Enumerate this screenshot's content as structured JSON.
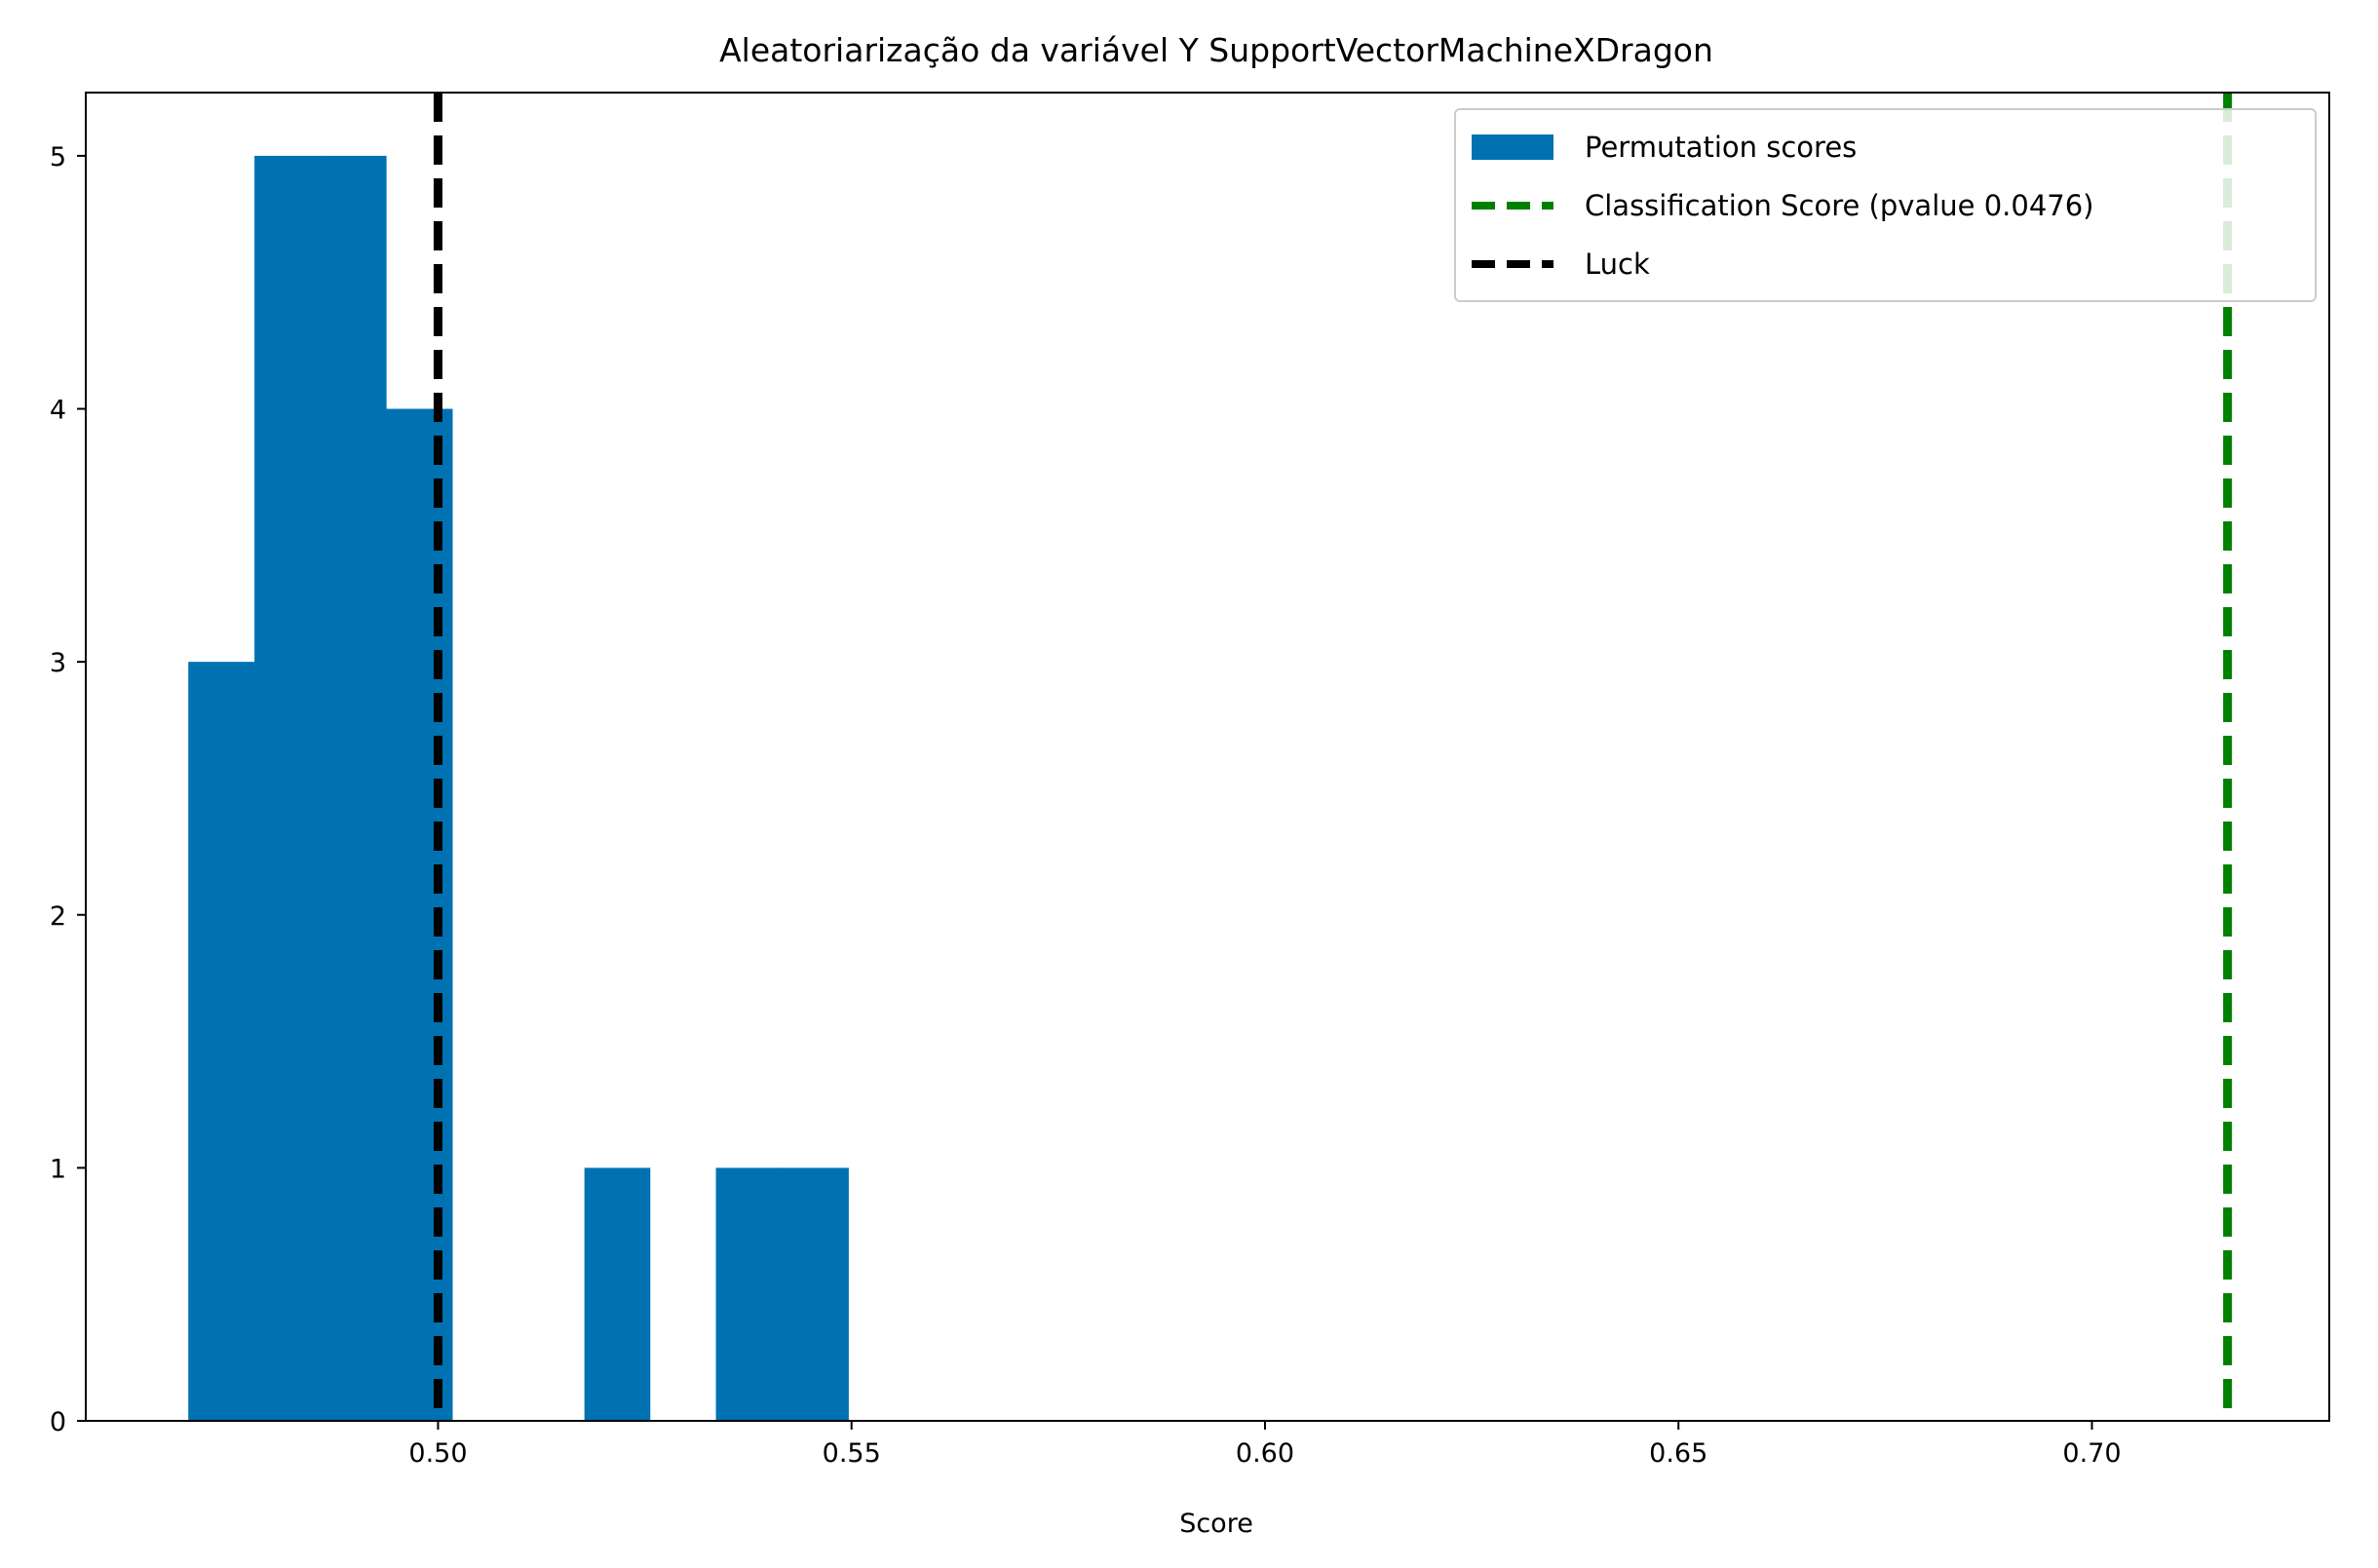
{
  "chart_data": {
    "type": "bar",
    "title": "Aleatoriarização da variável Y SupportVectorMachineXDragon",
    "xlabel": "Score",
    "ylabel": "",
    "xlim": [
      0.4574,
      0.7287
    ],
    "ylim": [
      0,
      5.25
    ],
    "grid": false,
    "legend_position": "top-right",
    "xticks": [
      {
        "value": 0.5,
        "label": "0.50"
      },
      {
        "value": 0.55,
        "label": "0.55"
      },
      {
        "value": 0.6,
        "label": "0.60"
      },
      {
        "value": 0.65,
        "label": "0.65"
      },
      {
        "value": 0.7,
        "label": "0.70"
      }
    ],
    "yticks": [
      {
        "value": 0,
        "label": "0"
      },
      {
        "value": 1,
        "label": "1"
      },
      {
        "value": 2,
        "label": "2"
      },
      {
        "value": 3,
        "label": "3"
      },
      {
        "value": 4,
        "label": "4"
      },
      {
        "value": 5,
        "label": "5"
      }
    ],
    "histogram": {
      "name": "Permutation scores",
      "color": "#0072b2",
      "bins": [
        {
          "start": 0.4698,
          "end": 0.4778,
          "count": 3
        },
        {
          "start": 0.4778,
          "end": 0.4858,
          "count": 5
        },
        {
          "start": 0.4858,
          "end": 0.4937,
          "count": 5
        },
        {
          "start": 0.4937,
          "end": 0.5017,
          "count": 4
        },
        {
          "start": 0.5017,
          "end": 0.5097,
          "count": 0
        },
        {
          "start": 0.5097,
          "end": 0.5177,
          "count": 0
        },
        {
          "start": 0.5177,
          "end": 0.5256,
          "count": 1
        },
        {
          "start": 0.5256,
          "end": 0.5336,
          "count": 0
        },
        {
          "start": 0.5336,
          "end": 0.5416,
          "count": 1
        },
        {
          "start": 0.5416,
          "end": 0.5496,
          "count": 1
        }
      ]
    },
    "vlines": [
      {
        "name": "Classification Score (pvalue 0.0476)",
        "x": 0.7164,
        "color": "#008000",
        "style": "dashed"
      },
      {
        "name": "Luck",
        "x": 0.5,
        "color": "#000000",
        "style": "dashed"
      }
    ],
    "legend": [
      {
        "label": "Permutation scores",
        "kind": "patch",
        "color": "#0072b2"
      },
      {
        "label": "Classification Score (pvalue 0.0476)",
        "kind": "dashed-line",
        "color": "#008000"
      },
      {
        "label": "Luck",
        "kind": "dashed-line",
        "color": "#000000"
      }
    ]
  }
}
